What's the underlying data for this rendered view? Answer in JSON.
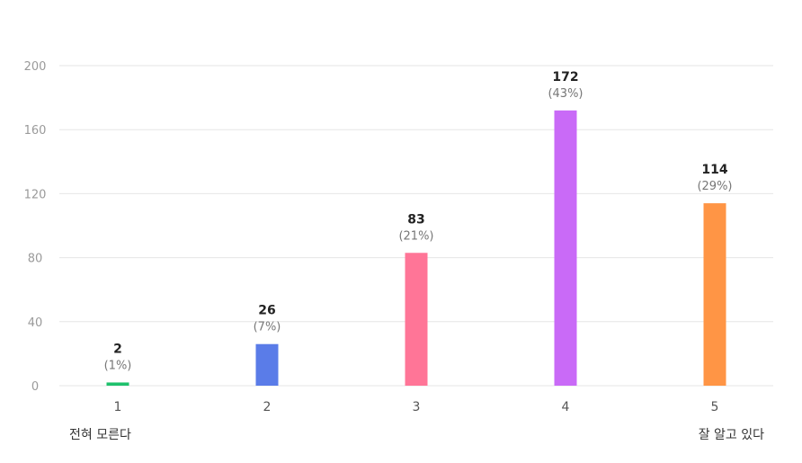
{
  "chart_data": {
    "type": "bar",
    "categories": [
      "1",
      "2",
      "3",
      "4",
      "5"
    ],
    "values": [
      2,
      26,
      83,
      172,
      114
    ],
    "percent_labels": [
      "(1%)",
      "(7%)",
      "(21%)",
      "(43%)",
      "(29%)"
    ],
    "colors": [
      "#1ec16c",
      "#5a7ce8",
      "#ff7597",
      "#c96af7",
      "#ff9545"
    ],
    "ylim": [
      0,
      200
    ],
    "yticks": [
      0,
      40,
      80,
      120,
      160,
      200
    ],
    "grid": true,
    "legend": "none",
    "scale_labels": {
      "low": "전혀 모른다",
      "high": "잘 알고 있다"
    }
  }
}
